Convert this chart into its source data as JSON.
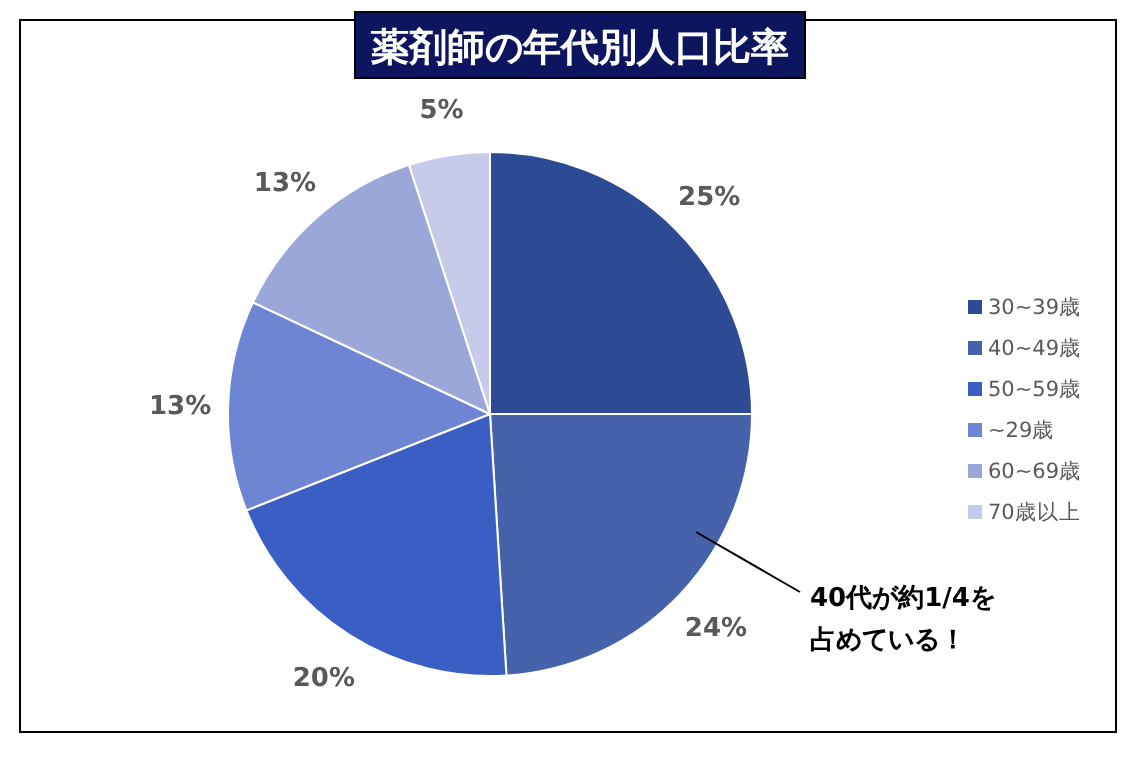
{
  "chart_data": {
    "type": "pie",
    "title": "薬剤師の年代別人口比率",
    "categories": [
      "30~39歳",
      "40~49歳",
      "50~59歳",
      "~29歳",
      "60~69歳",
      "70歳以上"
    ],
    "values": [
      25,
      24,
      20,
      13,
      13,
      5
    ],
    "colors": [
      "#2d4b94",
      "#4562aa",
      "#3a5ec4",
      "#6d85d2",
      "#9ba7d8",
      "#c6cbe9"
    ],
    "value_labels": [
      "25%",
      "24%",
      "20%",
      "13%",
      "13%",
      "5%"
    ],
    "legend": "right",
    "annotations": [
      "40代が約1/4を",
      "占めている！"
    ]
  }
}
